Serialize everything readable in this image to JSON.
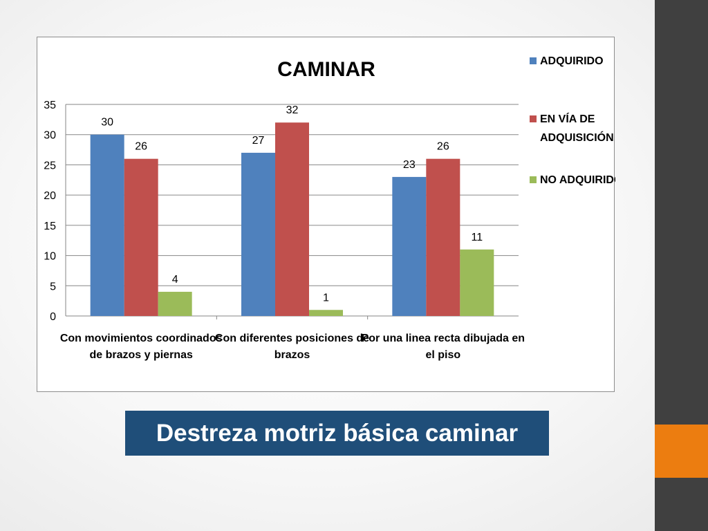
{
  "slide": {
    "caption": "Destreza motriz básica caminar",
    "caption_bg": "#1f4e79",
    "sidebar_color": "#404040",
    "accent_color": "#ec7d10"
  },
  "chart_data": {
    "type": "bar",
    "title": "CAMINAR",
    "xlabel": "",
    "ylabel": "",
    "ylim": [
      0,
      35
    ],
    "yticks": [
      0,
      5,
      10,
      15,
      20,
      25,
      30,
      35
    ],
    "grid": true,
    "legend_position": "right",
    "categories": [
      [
        "Con movimientos coordinados",
        "de brazos y piernas"
      ],
      [
        "Con diferentes posiciones de",
        "brazos"
      ],
      [
        "Por una linea  recta dibujada en",
        "el piso"
      ]
    ],
    "series": [
      {
        "name": "ADQUIRIDO",
        "legend_lines": [
          "ADQUIRIDO"
        ],
        "color": "#4f81bd",
        "values": [
          30,
          27,
          23
        ]
      },
      {
        "name": "EN VÍA DE ADQUISICIÓN",
        "legend_lines": [
          "EN VÍA DE",
          "ADQUISICIÓN"
        ],
        "color": "#c0504d",
        "values": [
          26,
          32,
          26
        ]
      },
      {
        "name": "NO ADQUIRIDO",
        "legend_lines": [
          "NO ADQUIRIDO"
        ],
        "color": "#9bbb59",
        "values": [
          4,
          1,
          11
        ]
      }
    ]
  }
}
